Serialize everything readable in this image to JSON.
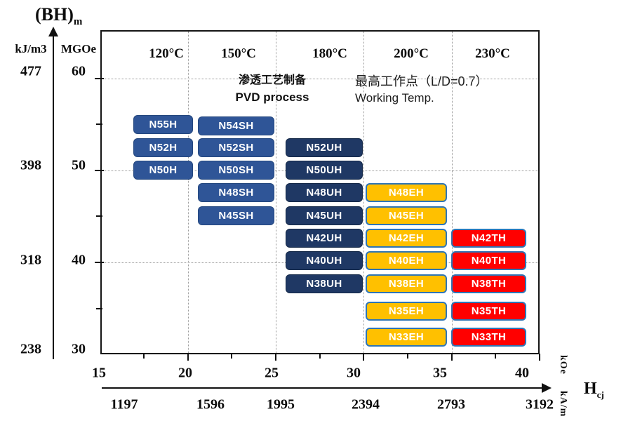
{
  "y_axis": {
    "title_main": "(BH)",
    "title_sub": "m",
    "unit_kj": "kJ/m3",
    "unit_mgoe": "MGOe",
    "rows": [
      {
        "kj": "477",
        "mgoe": "60"
      },
      {
        "kj": "398",
        "mgoe": "50"
      },
      {
        "kj": "318",
        "mgoe": "40"
      },
      {
        "kj": "238",
        "mgoe": "30"
      }
    ]
  },
  "x_axis": {
    "label_main": "H",
    "label_sub": "cj",
    "unit_koe": "kOe",
    "unit_kam": "kA/m",
    "koe_labels": [
      "15",
      "20",
      "25",
      "30",
      "35",
      "40"
    ],
    "kam_labels": [
      "1197",
      "1596",
      "1995",
      "2394",
      "2793",
      "3192"
    ]
  },
  "annotations": {
    "process_zh": "渗透工艺制备",
    "process_en": "PVD process",
    "working_zh": "最高工作点（L/D=0.7）",
    "working_en": "Working Temp."
  },
  "chart_data": {
    "type": "table",
    "title": "NdFeB magnet grade map: (BH)max vs intrinsic coercivity Hcj by max working temperature",
    "x_axis": {
      "label": "Hcj",
      "units": [
        "kOe",
        "kA/m"
      ],
      "koe_ticks": [
        15,
        20,
        25,
        30,
        35,
        40
      ],
      "kam_ticks": [
        1197,
        1596,
        1995,
        2394,
        2793,
        3192
      ]
    },
    "y_axis": {
      "label": "(BH)m",
      "units": [
        "MGOe",
        "kJ/m3"
      ],
      "mgoe_ticks": [
        60,
        50,
        40,
        30
      ],
      "kjm3_ticks": [
        477,
        398,
        318,
        238
      ]
    },
    "grid": "dotted",
    "temperature_columns": [
      {
        "working_temp": "120°C",
        "suffix": "H",
        "color": "#2F5597",
        "edge": "#24477E",
        "edge_width": 1,
        "grades": [
          "N55H",
          "N52H",
          "N50H"
        ]
      },
      {
        "working_temp": "150°C",
        "suffix": "SH",
        "color": "#2F5597",
        "edge": "#24477E",
        "edge_width": 1,
        "grades": [
          "N54SH",
          "N52SH",
          "N50SH",
          "N48SH",
          "N45SH"
        ]
      },
      {
        "working_temp": "180°C",
        "suffix": "UH",
        "color": "#1F3864",
        "edge": "#142847",
        "edge_width": 1,
        "grades": [
          "N52UH",
          "N50UH",
          "N48UH",
          "N45UH",
          "N42UH",
          "N40UH",
          "N38UH"
        ]
      },
      {
        "working_temp": "200°C",
        "suffix": "EH",
        "color": "#FFC000",
        "edge": "#2E75B6",
        "edge_width": 2,
        "grades": [
          "N48EH",
          "N45EH",
          "N42EH",
          "N40EH",
          "N38EH",
          "N35EH",
          "N33EH"
        ]
      },
      {
        "working_temp": "230°C",
        "suffix": "TH",
        "color": "#FF0000",
        "edge": "#2E75B6",
        "edge_width": 2,
        "grades": [
          "N42TH",
          "N40TH",
          "N38TH",
          "N35TH",
          "N33TH"
        ]
      }
    ],
    "grade_mgoe_values": {
      "N55": 55,
      "N54": 54,
      "N52": 52,
      "N50": 50,
      "N48": 48,
      "N45": 45,
      "N42": 42,
      "N40": 40,
      "N38": 38,
      "N35": 35,
      "N33": 33
    },
    "colors": {
      "blue_h_sh": "#2F5597",
      "navy_uh": "#1F3864",
      "orange_eh": "#FFC000",
      "red_th": "#FF0000",
      "warm_box_border": "#2E75B6",
      "box_text": "#FFFFFF"
    }
  }
}
